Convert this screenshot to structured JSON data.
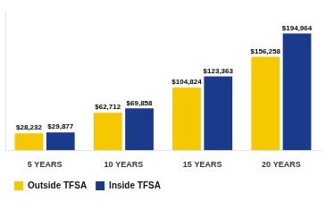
{
  "chart_data": {
    "type": "bar",
    "categories": [
      "5 YEARS",
      "10 YEARS",
      "15 YEARS",
      "20 YEARS"
    ],
    "series": [
      {
        "name": "Outside TFSA",
        "color": "#F5C800",
        "values": [
          28232,
          62712,
          104824,
          156258
        ],
        "value_labels": [
          "$28,232",
          "$62,712",
          "$104,824",
          "$156,258"
        ]
      },
      {
        "name": "Inside TFSA",
        "color": "#1A3A8C",
        "values": [
          29877,
          69858,
          123363,
          194964
        ],
        "value_labels": [
          "$29,877",
          "$69,858",
          "$123,363",
          "$194,964"
        ]
      }
    ],
    "ylim": [
      0,
      230000
    ],
    "grid": false,
    "legend": "lower left",
    "data_labels": true,
    "tick_labels": "x"
  }
}
